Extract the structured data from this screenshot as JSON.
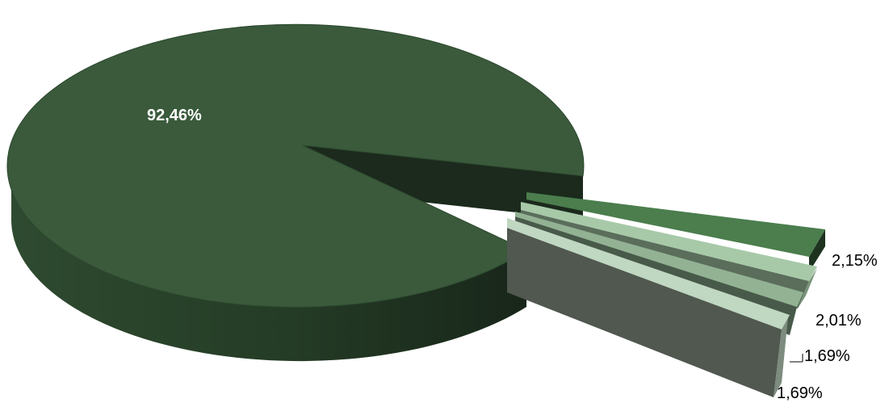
{
  "chart_data": {
    "type": "pie",
    "style": "3d-exploded",
    "values": [
      92.46,
      2.15,
      2.01,
      1.69,
      1.69
    ],
    "labels": [
      "92,46%",
      "2,15%",
      "2,01%",
      "1,69%",
      "1,69%"
    ],
    "colors": [
      "#3a5a3b",
      "#4b7d4d",
      "#a7c9a8",
      "#93b294",
      "#c0d7c1"
    ],
    "title": "",
    "legend": "none"
  }
}
